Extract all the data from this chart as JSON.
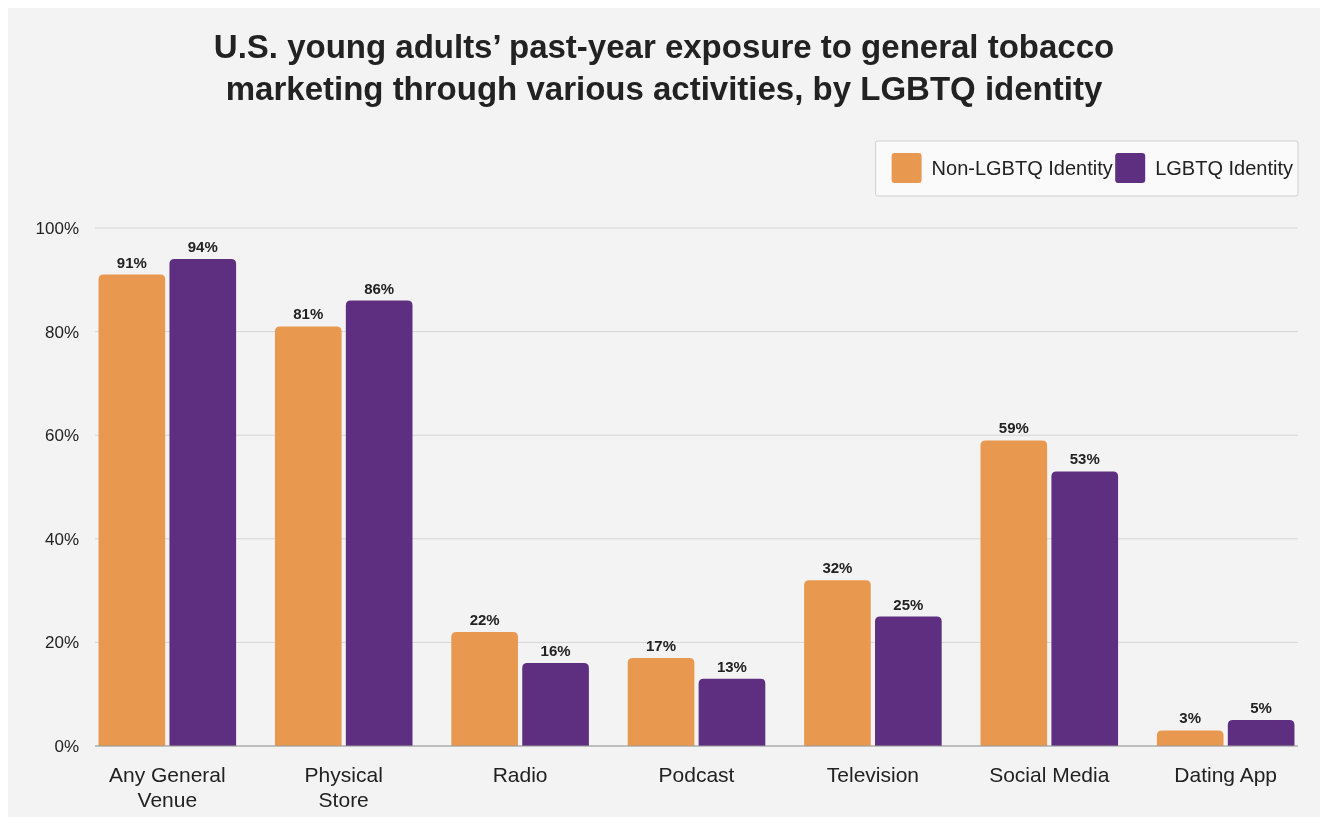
{
  "chart_data": {
    "type": "bar",
    "title": "U.S. young adults’ past-year exposure to general tobacco marketing through various activities, by LGBTQ identity",
    "categories": [
      "Any General Venue",
      "Physical Store",
      "Radio",
      "Podcast",
      "Television",
      "Social Media",
      "Dating App"
    ],
    "series": [
      {
        "name": "Non-LGBTQ Identity",
        "color": "#e8994f",
        "values": [
          91,
          81,
          22,
          17,
          32,
          59,
          3
        ],
        "value_labels": [
          "91%",
          "81%",
          "22%",
          "17%",
          "32%",
          "59%",
          "3%"
        ]
      },
      {
        "name": "LGBTQ Identity",
        "color": "#5e2f80",
        "values": [
          94,
          86,
          16,
          13,
          25,
          53,
          5
        ],
        "value_labels": [
          "94%",
          "86%",
          "16%",
          "13%",
          "25%",
          "53%",
          "5%"
        ]
      }
    ],
    "ylim": [
      0,
      100
    ],
    "yticks": [
      {
        "value": 0,
        "label": "0%"
      },
      {
        "value": 20,
        "label": "20%"
      },
      {
        "value": 40,
        "label": "40%"
      },
      {
        "value": 60,
        "label": "60%"
      },
      {
        "value": 80,
        "label": "80%"
      },
      {
        "value": 100,
        "label": "100%"
      }
    ],
    "grid": "y",
    "legend": "top right"
  }
}
